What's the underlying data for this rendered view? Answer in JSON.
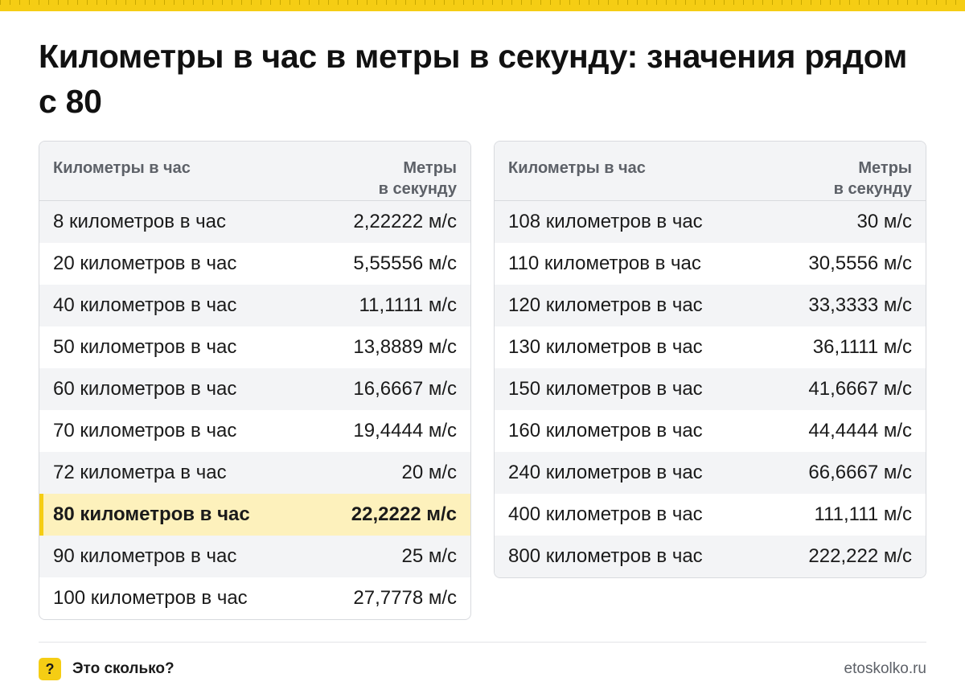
{
  "title": "Километры в час в метры в секунду: значения рядом с 80",
  "table_left": {
    "header": {
      "col1": "Километры в час",
      "col2_line1": "Метры",
      "col2_line2": "в секунду"
    },
    "rows": [
      {
        "label": "8 километров в час",
        "value": "2,22222 м/с"
      },
      {
        "label": "20 километров в час",
        "value": "5,55556 м/с"
      },
      {
        "label": "40 километров в час",
        "value": "11,1111 м/с"
      },
      {
        "label": "50 километров в час",
        "value": "13,8889 м/с"
      },
      {
        "label": "60 километров в час",
        "value": "16,6667 м/с"
      },
      {
        "label": "70 километров в час",
        "value": "19,4444 м/с"
      },
      {
        "label": "72 километра в час",
        "value": "20 м/с"
      },
      {
        "label": "80 километров в час",
        "value": "22,2222 м/с"
      },
      {
        "label": "90 километров в час",
        "value": "25 м/с"
      },
      {
        "label": "100 километров в час",
        "value": "27,7778 м/с"
      }
    ]
  },
  "table_right": {
    "header": {
      "col1": "Километры в час",
      "col2_line1": "Метры",
      "col2_line2": "в секунду"
    },
    "rows": [
      {
        "label": "108 километров в час",
        "value": "30 м/с"
      },
      {
        "label": "110 километров в час",
        "value": "30,5556 м/с"
      },
      {
        "label": "120 километров в час",
        "value": "33,3333 м/с"
      },
      {
        "label": "130 километров в час",
        "value": "36,1111 м/с"
      },
      {
        "label": "150 километров в час",
        "value": "41,6667 м/с"
      },
      {
        "label": "160 километров в час",
        "value": "44,4444 м/с"
      },
      {
        "label": "240 километров в час",
        "value": "66,6667 м/с"
      },
      {
        "label": "400 километров в час",
        "value": "111,111 м/с"
      },
      {
        "label": "800 километров в час",
        "value": "222,222 м/с"
      }
    ]
  },
  "footer": {
    "icon": "question-mark-icon",
    "icon_glyph": "?",
    "brand": "Это сколько?",
    "site": "etoskolko.ru"
  },
  "colors": {
    "accent": "#f5cd14",
    "highlight_row": "#fdf1bc",
    "stripe": "#f3f4f6"
  }
}
